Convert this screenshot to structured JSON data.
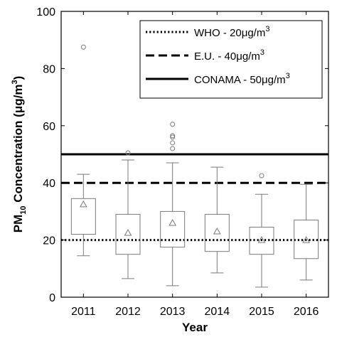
{
  "chart_data": {
    "type": "box",
    "xlabel": "Year",
    "ylabel_main": "PM",
    "ylabel_sub": "10",
    "ylabel_rest": " Concentration (",
    "ylabel_mu": "μ",
    "ylabel_unit": "g/m",
    "ylabel_sup": "3",
    "ylabel_close": ")",
    "ylim": [
      0,
      100
    ],
    "yticks": [
      "0",
      "20",
      "40",
      "60",
      "80",
      "100"
    ],
    "categories": [
      "2011",
      "2012",
      "2013",
      "2014",
      "2015",
      "2016"
    ],
    "boxes": [
      {
        "category": "2011",
        "whisker_low": 14.5,
        "q1": 22.0,
        "q3": 34.5,
        "whisker_high": 43.0,
        "mean": 32.5,
        "outliers": [
          87.5
        ]
      },
      {
        "category": "2012",
        "whisker_low": 6.5,
        "q1": 15.0,
        "q3": 29.0,
        "whisker_high": 48.0,
        "mean": 22.5,
        "outliers": [
          50.5
        ]
      },
      {
        "category": "2013",
        "whisker_low": 4.0,
        "q1": 17.5,
        "q3": 30.0,
        "whisker_high": 47.0,
        "mean": 26.0,
        "outliers": [
          52.0,
          54.0,
          56.0,
          56.5,
          60.5
        ]
      },
      {
        "category": "2014",
        "whisker_low": 8.5,
        "q1": 16.0,
        "q3": 29.0,
        "whisker_high": 45.5,
        "mean": 23.0,
        "outliers": []
      },
      {
        "category": "2015",
        "whisker_low": 3.5,
        "q1": 15.0,
        "q3": 24.5,
        "whisker_high": 36.0,
        "mean": 20.0,
        "outliers": [
          42.5
        ]
      },
      {
        "category": "2016",
        "whisker_low": 6.0,
        "q1": 13.5,
        "q3": 27.0,
        "whisker_high": 39.5,
        "mean": 20.0,
        "outliers": []
      }
    ],
    "reference_lines": [
      {
        "value": 20,
        "style": "dotted",
        "label": "WHO - 20",
        "unit": "μg/m",
        "sup": "3"
      },
      {
        "value": 40,
        "style": "dashed",
        "label": "E.U. - 40",
        "unit": "μg/m",
        "sup": "3"
      },
      {
        "value": 50,
        "style": "solid",
        "label": "CONAMA - 50",
        "unit": "μg/m",
        "sup": "3"
      }
    ],
    "legend_position": "top-right",
    "grid": false,
    "colors": {
      "box": "#7a7a7a",
      "reference": "#000000",
      "axis": "#000000"
    }
  }
}
